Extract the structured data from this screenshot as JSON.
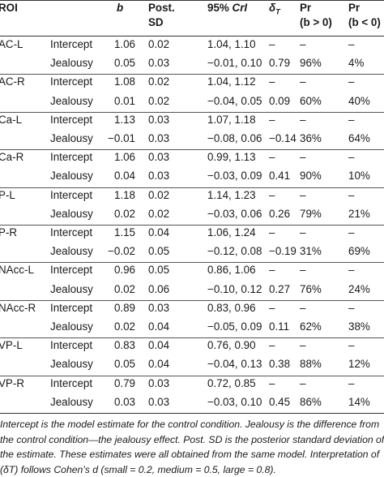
{
  "headers": {
    "roi": "ROI",
    "b": "b",
    "postsd_line1": "Post.",
    "postsd_line2": "SD",
    "crl_prefix": "95%",
    "crl_italic": "CrI",
    "delta": "δ",
    "delta_sub": "T",
    "pr_pos_line1": "Pr",
    "pr_pos_line2": "(b > 0)",
    "pr_neg_line1": "Pr",
    "pr_neg_line2": "(b < 0)"
  },
  "groups": [
    {
      "roi": "AC-L",
      "rows": [
        {
          "term": "Intercept",
          "b": "1.06",
          "sd": "0.02",
          "ci": "1.04, 1.10",
          "delta": "–",
          "prpos": "–",
          "prneg": "–"
        },
        {
          "term": "Jealousy",
          "b": "0.05",
          "sd": "0.03",
          "ci": "−0.01, 0.10",
          "delta": "0.79",
          "prpos": "96%",
          "prneg": "4%"
        }
      ]
    },
    {
      "roi": "AC-R",
      "rows": [
        {
          "term": "Intercept",
          "b": "1.08",
          "sd": "0.02",
          "ci": "1.04, 1.12",
          "delta": "–",
          "prpos": "–",
          "prneg": "–"
        },
        {
          "term": "Jealousy",
          "b": "0.01",
          "sd": "0.02",
          "ci": "−0.04, 0.05",
          "delta": "0.09",
          "prpos": "60%",
          "prneg": "40%"
        }
      ]
    },
    {
      "roi": "Ca-L",
      "rows": [
        {
          "term": "Intercept",
          "b": "1.13",
          "sd": "0.03",
          "ci": "1.07, 1.18",
          "delta": "–",
          "prpos": "–",
          "prneg": "–"
        },
        {
          "term": "Jealousy",
          "b": "−0.01",
          "sd": "0.03",
          "ci": "−0.08, 0.06",
          "delta": "−0.14",
          "prpos": "36%",
          "prneg": "64%"
        }
      ]
    },
    {
      "roi": "Ca-R",
      "rows": [
        {
          "term": "Intercept",
          "b": "1.06",
          "sd": "0.03",
          "ci": "0.99, 1.13",
          "delta": "–",
          "prpos": "–",
          "prneg": "–"
        },
        {
          "term": "Jealousy",
          "b": "0.04",
          "sd": "0.03",
          "ci": "−0.03, 0.09",
          "delta": "0.41",
          "prpos": "90%",
          "prneg": "10%"
        }
      ]
    },
    {
      "roi": "P-L",
      "rows": [
        {
          "term": "Intercept",
          "b": "1.18",
          "sd": "0.02",
          "ci": "1.14, 1.23",
          "delta": "–",
          "prpos": "–",
          "prneg": "–"
        },
        {
          "term": "Jealousy",
          "b": "0.02",
          "sd": "0.02",
          "ci": "−0.03, 0.06",
          "delta": "0.26",
          "prpos": "79%",
          "prneg": "21%"
        }
      ]
    },
    {
      "roi": "P-R",
      "rows": [
        {
          "term": "Intercept",
          "b": "1.15",
          "sd": "0.04",
          "ci": "1.06, 1.24",
          "delta": "–",
          "prpos": "–",
          "prneg": "–"
        },
        {
          "term": "Jealousy",
          "b": "−0.02",
          "sd": "0.05",
          "ci": "−0.12, 0.08",
          "delta": "−0.19",
          "prpos": "31%",
          "prneg": "69%"
        }
      ]
    },
    {
      "roi": "NAcc-L",
      "rows": [
        {
          "term": "Intercept",
          "b": "0.96",
          "sd": "0.05",
          "ci": "0.86, 1.06",
          "delta": "–",
          "prpos": "–",
          "prneg": "–"
        },
        {
          "term": "Jealousy",
          "b": "0.02",
          "sd": "0.06",
          "ci": "−0.10, 0.12",
          "delta": "0.27",
          "prpos": "76%",
          "prneg": "24%"
        }
      ]
    },
    {
      "roi": "NAcc-R",
      "rows": [
        {
          "term": "Intercept",
          "b": "0.89",
          "sd": "0.03",
          "ci": "0.83, 0.96",
          "delta": "–",
          "prpos": "–",
          "prneg": "–"
        },
        {
          "term": "Jealousy",
          "b": "0.02",
          "sd": "0.04",
          "ci": "−0.05, 0.09",
          "delta": "0.11",
          "prpos": "62%",
          "prneg": "38%"
        }
      ]
    },
    {
      "roi": "VP-L",
      "rows": [
        {
          "term": "Intercept",
          "b": "0.83",
          "sd": "0.04",
          "ci": "0.76, 0.90",
          "delta": "–",
          "prpos": "–",
          "prneg": "–"
        },
        {
          "term": "Jealousy",
          "b": "0.05",
          "sd": "0.04",
          "ci": "−0.04, 0.13",
          "delta": "0.38",
          "prpos": "88%",
          "prneg": "12%"
        }
      ]
    },
    {
      "roi": "VP-R",
      "rows": [
        {
          "term": "Intercept",
          "b": "0.79",
          "sd": "0.03",
          "ci": "0.72, 0.85",
          "delta": "–",
          "prpos": "–",
          "prneg": "–"
        },
        {
          "term": "Jealousy",
          "b": "0.03",
          "sd": "0.03",
          "ci": "−0.03, 0.10",
          "delta": "0.45",
          "prpos": "86%",
          "prneg": "14%"
        }
      ]
    }
  ],
  "footnote": [
    "Intercept is the model estimate for the control condition. Jealousy is the difference from",
    "the control condition—the jealousy effect. Post. SD is the posterior standard deviation of",
    "the estimate. These estimates were all obtained from the same model. Interpretation of",
    "(δT) follows Cohen’s d (small = 0.2, medium = 0.5, large = 0.8)."
  ]
}
